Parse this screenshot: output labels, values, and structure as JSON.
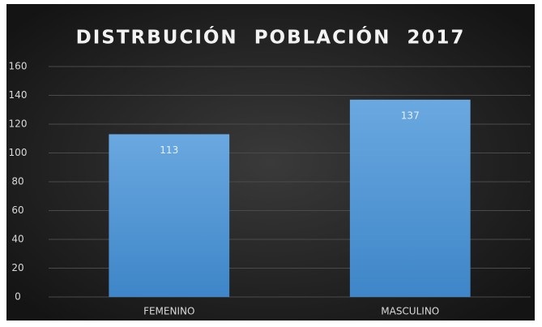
{
  "chart_data": {
    "type": "bar",
    "title": "DISTRBUCIÓN  POBLACIÓN  2017",
    "categories": [
      "FEMENINO",
      "MASCULINO"
    ],
    "values": [
      113,
      137
    ],
    "color": "#5b9bd5",
    "ylim": [
      0,
      160
    ],
    "yticks": [
      0,
      20,
      40,
      60,
      80,
      100,
      120,
      140,
      160
    ],
    "grid": true
  }
}
